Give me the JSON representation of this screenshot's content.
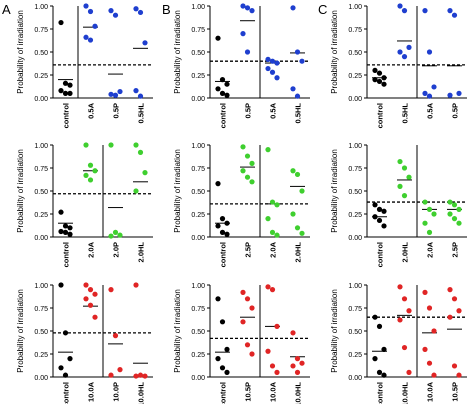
{
  "panel_letters": [
    "A",
    "B",
    "C"
  ],
  "colors": {
    "row1": "#1f3fcf",
    "row2": "#3fcf2f",
    "row3": "#e02525",
    "control": "#000000",
    "axis": "#000000",
    "threshold": "#000000"
  },
  "chart_data": [
    {
      "type": "scatter",
      "panel": "A",
      "row": 1,
      "ylabel": "Probability of irradiation",
      "ylim": [
        0,
        1
      ],
      "yticks": [
        "0.00",
        "0.25",
        "0.50",
        "0.75",
        "1.00"
      ],
      "threshold": 0.36,
      "divider_after": 1,
      "series": [
        {
          "label": "control",
          "points": [
            0.82,
            0.16,
            0.14,
            0.08,
            0.05,
            0.05
          ],
          "mean": 0.2,
          "color": "control"
        },
        {
          "label": "0.5A",
          "points": [
            1.0,
            0.94,
            0.78,
            0.66,
            0.63
          ],
          "mean": 0.77,
          "color": "row1"
        },
        {
          "label": "0.5P",
          "points": [
            0.95,
            0.9,
            0.07,
            0.04,
            0.03
          ],
          "mean": 0.26,
          "color": "row1"
        },
        {
          "label": "0.5HL",
          "points": [
            0.97,
            0.93,
            0.6,
            0.08,
            0.02
          ],
          "mean": 0.54,
          "color": "row1"
        }
      ]
    },
    {
      "type": "scatter",
      "panel": "B",
      "row": 1,
      "ylabel": "Probability of irradiation",
      "ylim": [
        0,
        1
      ],
      "yticks": [
        "0.00",
        "0.25",
        "0.50",
        "0.75",
        "1.00"
      ],
      "threshold": 0.4,
      "divider_after": 2,
      "series": [
        {
          "label": "control",
          "points": [
            0.65,
            0.2,
            0.15,
            0.1,
            0.05,
            0.03
          ],
          "mean": 0.18,
          "color": "control"
        },
        {
          "label": "0.5P",
          "points": [
            1.0,
            0.98,
            0.95,
            0.7,
            0.5
          ],
          "mean": 0.84,
          "color": "row1"
        },
        {
          "label": "0.5A",
          "points": [
            0.42,
            0.4,
            0.38,
            0.32,
            0.28,
            0.22
          ],
          "mean": 0.38,
          "color": "row1"
        },
        {
          "label": "0.5HL",
          "points": [
            0.98,
            0.5,
            0.4,
            0.1,
            0.02
          ],
          "mean": 0.49,
          "color": "row1"
        }
      ]
    },
    {
      "type": "scatter",
      "panel": "C",
      "row": 1,
      "ylabel": "Probability of irradiation",
      "ylim": [
        0,
        1
      ],
      "yticks": [
        "0.00",
        "0.25",
        "0.50",
        "0.75",
        "1.00"
      ],
      "threshold": 0.36,
      "divider_after": 2,
      "series": [
        {
          "label": "control",
          "points": [
            0.3,
            0.27,
            0.22,
            0.2,
            0.18,
            0.15
          ],
          "mean": 0.22,
          "color": "control"
        },
        {
          "label": "0.5HL",
          "points": [
            1.0,
            0.95,
            0.55,
            0.5,
            0.45
          ],
          "mean": 0.62,
          "color": "row1"
        },
        {
          "label": "0.5A",
          "points": [
            0.95,
            0.5,
            0.12,
            0.05,
            0.02
          ],
          "mean": 0.35,
          "color": "row1"
        },
        {
          "label": "0.5P",
          "points": [
            0.95,
            0.9,
            0.05,
            0.03
          ],
          "mean": 0.35,
          "color": "row1"
        }
      ]
    },
    {
      "type": "scatter",
      "panel": "A",
      "row": 2,
      "ylabel": "Probability of irradiation",
      "ylim": [
        0,
        1
      ],
      "yticks": [
        "0.00",
        "0.25",
        "0.50",
        "0.75",
        "1.00"
      ],
      "threshold": 0.47,
      "divider_after": 2,
      "series": [
        {
          "label": "control",
          "points": [
            0.27,
            0.12,
            0.1,
            0.06,
            0.05,
            0.03
          ],
          "mean": 0.15,
          "color": "control"
        },
        {
          "label": "2.0A",
          "points": [
            1.0,
            0.78,
            0.72,
            0.67,
            0.62
          ],
          "mean": 0.72,
          "color": "row2"
        },
        {
          "label": "2.0P",
          "points": [
            1.0,
            0.05,
            0.02,
            0.01
          ],
          "mean": 0.32,
          "color": "row2"
        },
        {
          "label": "2.0HL",
          "points": [
            1.0,
            0.92,
            0.7,
            0.5
          ],
          "mean": 0.6,
          "color": "row2"
        }
      ]
    },
    {
      "type": "scatter",
      "panel": "B",
      "row": 2,
      "ylabel": "Probability of irradiation",
      "ylim": [
        0,
        1
      ],
      "yticks": [
        "0.00",
        "0.25",
        "0.50",
        "0.75",
        "1.00"
      ],
      "threshold": 0.36,
      "divider_after": 2,
      "series": [
        {
          "label": "control",
          "points": [
            0.58,
            0.2,
            0.15,
            0.12,
            0.05,
            0.03
          ],
          "mean": 0.15,
          "color": "control"
        },
        {
          "label": "2.5P",
          "points": [
            0.98,
            0.88,
            0.8,
            0.72,
            0.65,
            0.6
          ],
          "mean": 0.76,
          "color": "row2"
        },
        {
          "label": "2.0A",
          "points": [
            0.95,
            0.38,
            0.35,
            0.2,
            0.05,
            0.02
          ],
          "mean": 0.36,
          "color": "row2"
        },
        {
          "label": "2.0HL",
          "points": [
            0.72,
            0.68,
            0.5,
            0.25,
            0.1,
            0.04
          ],
          "mean": 0.55,
          "color": "row2"
        }
      ]
    },
    {
      "type": "scatter",
      "panel": "C",
      "row": 2,
      "ylabel": "Probability of irradiation",
      "ylim": [
        0,
        1
      ],
      "yticks": [
        "0.00",
        "0.25",
        "0.50",
        "0.75",
        "1.00"
      ],
      "threshold": 0.38,
      "divider_after": 2,
      "series": [
        {
          "label": "control",
          "points": [
            0.35,
            0.3,
            0.28,
            0.22,
            0.18,
            0.12
          ],
          "mean": 0.22,
          "color": "control"
        },
        {
          "label": "2.0HL",
          "points": [
            0.82,
            0.75,
            0.65,
            0.55,
            0.45
          ],
          "mean": 0.62,
          "color": "row2"
        },
        {
          "label": "2.0A",
          "points": [
            0.38,
            0.3,
            0.25,
            0.15,
            0.05
          ],
          "mean": 0.3,
          "color": "row2"
        },
        {
          "label": "2.5P",
          "points": [
            0.38,
            0.35,
            0.3,
            0.25,
            0.2,
            0.15
          ],
          "mean": 0.3,
          "color": "row2"
        }
      ]
    },
    {
      "type": "scatter",
      "panel": "A",
      "row": 3,
      "ylabel": "Probability of irradiation",
      "ylim": [
        0,
        1
      ],
      "yticks": [
        "0.00",
        "0.25",
        "0.50",
        "0.75",
        "1.00"
      ],
      "threshold": 0.48,
      "divider_after": 2,
      "series": [
        {
          "label": "control",
          "points": [
            1.0,
            0.48,
            0.2,
            0.1,
            0.02
          ],
          "mean": 0.27,
          "color": "control"
        },
        {
          "label": "10.0A",
          "points": [
            1.0,
            0.95,
            0.9,
            0.85,
            0.78,
            0.65
          ],
          "mean": 0.77,
          "color": "row3"
        },
        {
          "label": "10.0P",
          "points": [
            0.95,
            0.45,
            0.08,
            0.02
          ],
          "mean": 0.36,
          "color": "row3"
        },
        {
          "label": "10.0HL",
          "points": [
            1.0,
            0.02,
            0.01,
            0.01
          ],
          "mean": 0.15,
          "color": "row3"
        }
      ]
    },
    {
      "type": "scatter",
      "panel": "B",
      "row": 3,
      "ylabel": "Probability of irradiation",
      "ylim": [
        0,
        1
      ],
      "yticks": [
        "0.00",
        "0.25",
        "0.50",
        "0.75",
        "1.00"
      ],
      "threshold": 0.42,
      "divider_after": 2,
      "series": [
        {
          "label": "control",
          "points": [
            0.85,
            0.6,
            0.3,
            0.2,
            0.1,
            0.05
          ],
          "mean": 0.27,
          "color": "control"
        },
        {
          "label": "10.5P",
          "points": [
            0.92,
            0.85,
            0.75,
            0.6,
            0.35,
            0.25
          ],
          "mean": 0.65,
          "color": "row3"
        },
        {
          "label": "10.0A",
          "points": [
            0.98,
            0.95,
            0.55,
            0.28,
            0.12,
            0.05
          ],
          "mean": 0.55,
          "color": "row3"
        },
        {
          "label": "10.0HL",
          "points": [
            0.48,
            0.2,
            0.15,
            0.12,
            0.05
          ],
          "mean": 0.22,
          "color": "row3"
        }
      ]
    },
    {
      "type": "scatter",
      "panel": "C",
      "row": 3,
      "ylabel": "Probability of irradiation",
      "ylim": [
        0,
        1
      ],
      "yticks": [
        "0.00",
        "0.25",
        "0.50",
        "0.75",
        "1.00"
      ],
      "threshold": 0.65,
      "divider_after": 2,
      "series": [
        {
          "label": "control",
          "points": [
            0.65,
            0.55,
            0.3,
            0.2,
            0.05,
            0.02
          ],
          "mean": 0.28,
          "color": "control"
        },
        {
          "label": "10.0HL",
          "points": [
            0.98,
            0.85,
            0.72,
            0.62,
            0.32,
            0.05
          ],
          "mean": 0.67,
          "color": "row3"
        },
        {
          "label": "10.0A",
          "points": [
            0.92,
            0.75,
            0.5,
            0.3,
            0.15,
            0.02
          ],
          "mean": 0.48,
          "color": "row3"
        },
        {
          "label": "10.5P",
          "points": [
            0.95,
            0.85,
            0.72,
            0.65,
            0.12,
            0.02
          ],
          "mean": 0.52,
          "color": "row3"
        }
      ]
    }
  ]
}
